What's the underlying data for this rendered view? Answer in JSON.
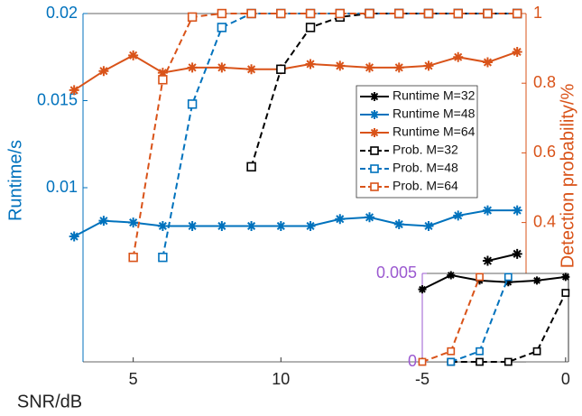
{
  "chart_data": [
    {
      "type": "line",
      "x": [
        3,
        4,
        5,
        6,
        7,
        8,
        9,
        10,
        11,
        12,
        13,
        14,
        15,
        16,
        17,
        18
      ],
      "xlim": [
        3.3,
        18.3
      ],
      "xticks": [
        5,
        10
      ],
      "xlabel": "SNR/dB",
      "ylabel": "Runtime/s",
      "y2label": "Detection probability/%",
      "ylim": [
        0,
        0.02
      ],
      "yticks": [
        0.01,
        0.015,
        0.02
      ],
      "y2lim": [
        0,
        1
      ],
      "y2ticks": [
        0.2,
        0.4,
        0.6,
        0.8,
        1
      ],
      "legend": "upper right",
      "series": [
        {
          "name": "Runtime M=32",
          "color": "#000000",
          "marker": "star",
          "dashed": false,
          "values": [
            null,
            null,
            null,
            null,
            null,
            null,
            null,
            null,
            null,
            null,
            null,
            null,
            null,
            null,
            0.0058,
            0.0062
          ]
        },
        {
          "name": "Runtime M=48",
          "color": "#0072BD",
          "marker": "star",
          "dashed": false,
          "values": [
            0.0072,
            0.0081,
            0.008,
            0.0078,
            0.0078,
            0.0078,
            0.0078,
            0.0078,
            0.0078,
            0.0082,
            0.0083,
            0.0079,
            0.0078,
            0.0084,
            0.0087,
            0.0087
          ]
        },
        {
          "name": "Runtime M=64",
          "color": "#D95319",
          "marker": "star",
          "dashed": false,
          "values": [
            0.0156,
            0.0167,
            0.0176,
            0.0166,
            0.0169,
            0.0169,
            0.0168,
            0.0168,
            0.0171,
            0.017,
            0.0169,
            0.0169,
            0.017,
            0.0175,
            0.0172,
            0.0178
          ]
        },
        {
          "name": "Prob. M=32",
          "color": "#000000",
          "marker": "square",
          "dashed": true,
          "axis": "y2",
          "values": [
            null,
            null,
            null,
            null,
            null,
            null,
            0.56,
            0.84,
            0.96,
            0.99,
            1,
            1,
            1,
            1,
            1,
            1
          ]
        },
        {
          "name": "Prob. M=48",
          "color": "#0072BD",
          "marker": "square",
          "dashed": true,
          "axis": "y2",
          "values": [
            null,
            null,
            null,
            0.3,
            0.74,
            0.96,
            1,
            1,
            1,
            1,
            1,
            1,
            1,
            1,
            1,
            1
          ]
        },
        {
          "name": "Prob. M=64",
          "color": "#D95319",
          "marker": "square",
          "dashed": true,
          "axis": "y2",
          "values": [
            null,
            null,
            0.3,
            0.81,
            0.99,
            1,
            1,
            1,
            1,
            1,
            1,
            1,
            1,
            1,
            1,
            1
          ]
        }
      ]
    },
    {
      "type": "line",
      "x": [
        -5,
        -4,
        -3,
        -2,
        -1,
        0
      ],
      "xlim": [
        -5,
        0.1
      ],
      "xticks": [
        -5,
        0
      ],
      "ylim": [
        0,
        0.005
      ],
      "yticks": [
        0,
        0.005
      ],
      "series": [
        {
          "color": "#000000",
          "marker": "star",
          "dashed": false,
          "values": [
            0.0041,
            0.0049,
            0.0046,
            0.0045,
            0.0046,
            0.0048
          ]
        },
        {
          "color": "#000000",
          "marker": "square",
          "dashed": true,
          "values": [
            null,
            0,
            0,
            0,
            0.0006,
            0.0039
          ]
        },
        {
          "color": "#0072BD",
          "marker": "square",
          "dashed": true,
          "values": [
            null,
            0,
            0.0006,
            0.0048,
            null,
            null
          ]
        },
        {
          "color": "#D95319",
          "marker": "square",
          "dashed": true,
          "values": [
            0,
            0.0006,
            0.0048,
            null,
            null,
            null
          ]
        }
      ]
    }
  ]
}
